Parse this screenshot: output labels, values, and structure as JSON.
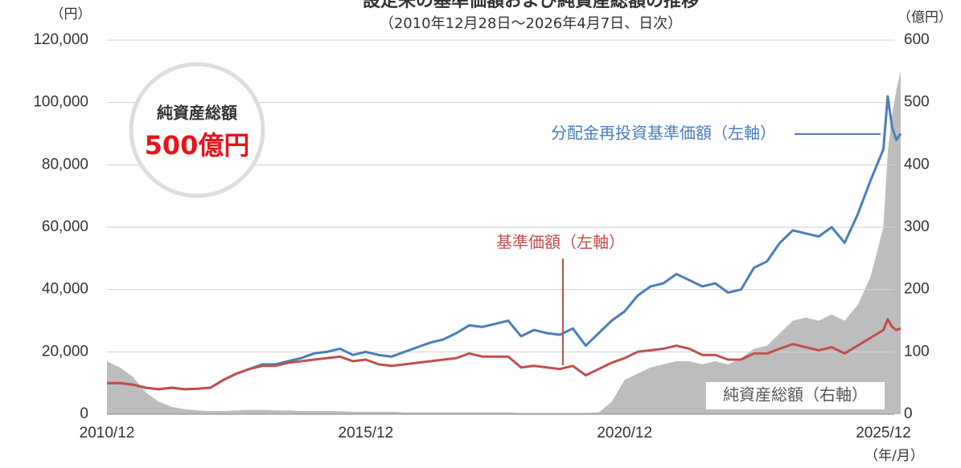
{
  "chart_data": {
    "type": "line",
    "title": "設定来の基準価額および純資産総額の推移",
    "subtitle": "（2010年12月28日～2026年4月7日、日次）",
    "y_unit": "（円）",
    "y2_unit": "（億円）",
    "x_unit": "（年/月）",
    "badge": {
      "label": "純資産総額",
      "value": "500億円"
    },
    "x": [
      "2010/12",
      "2011/03",
      "2011/06",
      "2011/09",
      "2011/12",
      "2012/03",
      "2012/06",
      "2012/09",
      "2012/12",
      "2013/03",
      "2013/06",
      "2013/09",
      "2013/12",
      "2014/03",
      "2014/06",
      "2014/09",
      "2014/12",
      "2015/03",
      "2015/06",
      "2015/09",
      "2015/12",
      "2016/03",
      "2016/06",
      "2016/09",
      "2016/12",
      "2017/03",
      "2017/06",
      "2017/09",
      "2017/12",
      "2018/03",
      "2018/06",
      "2018/09",
      "2018/12",
      "2019/03",
      "2019/06",
      "2019/09",
      "2019/12",
      "2020/03",
      "2020/06",
      "2020/09",
      "2020/12",
      "2021/03",
      "2021/06",
      "2021/09",
      "2021/12",
      "2022/03",
      "2022/06",
      "2022/09",
      "2022/12",
      "2023/03",
      "2023/06",
      "2023/09",
      "2023/12",
      "2024/03",
      "2024/06",
      "2024/09",
      "2024/12",
      "2025/03",
      "2025/06",
      "2025/09",
      "2025/12",
      "2026/01",
      "2026/02",
      "2026/03",
      "2026/04"
    ],
    "xlim": [
      "2010/12",
      "2026/04"
    ],
    "xticks": [
      "2010/12",
      "2015/12",
      "2020/12",
      "2025/12"
    ],
    "ylim": [
      0,
      120000
    ],
    "yticks": [
      0,
      {
        "value": 20000,
        "label": "20,000"
      },
      {
        "value": 40000,
        "label": "40,000"
      },
      {
        "value": 60000,
        "label": "60,000"
      },
      {
        "value": 80000,
        "label": "80,000"
      },
      {
        "value": 100000,
        "label": "100,000"
      },
      {
        "value": 120000,
        "label": "120,000"
      }
    ],
    "y2lim": [
      0,
      600
    ],
    "y2ticks": [
      0,
      100,
      200,
      300,
      400,
      500,
      600
    ],
    "grid": true,
    "series": [
      {
        "name": "純資産総額（右軸）",
        "color": "#bdbdbd",
        "axis": "y2",
        "kind": "area",
        "values": [
          85,
          75,
          60,
          35,
          20,
          12,
          8,
          6,
          5,
          5,
          6,
          7,
          7,
          6,
          6,
          5,
          5,
          5,
          5,
          4,
          4,
          4,
          4,
          3,
          3,
          3,
          3,
          3,
          3,
          3,
          3,
          3,
          2,
          2,
          2,
          2,
          2,
          2,
          3,
          20,
          55,
          65,
          75,
          80,
          85,
          85,
          80,
          85,
          80,
          90,
          105,
          110,
          130,
          150,
          155,
          150,
          160,
          150,
          175,
          220,
          300,
          420,
          480,
          520,
          550
        ]
      },
      {
        "name": "分配金再投資基準価額（左軸）",
        "color": "#4a7ebb",
        "values": [
          10000,
          10000,
          9500,
          8500,
          8000,
          8500,
          8000,
          8200,
          8500,
          11000,
          13000,
          14500,
          16000,
          16000,
          17000,
          18000,
          19500,
          20000,
          21000,
          19000,
          20000,
          19000,
          18500,
          20000,
          21500,
          23000,
          24000,
          26000,
          28500,
          28000,
          29000,
          30000,
          25000,
          27000,
          26000,
          25500,
          27500,
          22000,
          26000,
          30000,
          33000,
          38000,
          41000,
          42000,
          45000,
          43000,
          41000,
          42000,
          39000,
          40000,
          47000,
          49000,
          55000,
          59000,
          58000,
          57000,
          60000,
          55000,
          64000,
          75000,
          85000,
          102000,
          92000,
          88000,
          90000
        ]
      },
      {
        "name": "基準価額（左軸）",
        "color": "#c0504d",
        "values": [
          10000,
          10000,
          9500,
          8500,
          8000,
          8500,
          8000,
          8200,
          8500,
          11000,
          13000,
          14500,
          15500,
          15500,
          16500,
          17000,
          17500,
          18000,
          18500,
          17000,
          17500,
          16000,
          15500,
          16000,
          16500,
          17000,
          17500,
          18000,
          19500,
          18500,
          18500,
          18500,
          15000,
          15500,
          15000,
          14500,
          15500,
          12500,
          14500,
          16500,
          18000,
          20000,
          20500,
          21000,
          22000,
          21000,
          19000,
          19000,
          17500,
          17500,
          19500,
          19500,
          21000,
          22500,
          21500,
          20500,
          21500,
          19500,
          22000,
          24500,
          27000,
          30500,
          28000,
          27000,
          27500
        ]
      }
    ]
  }
}
